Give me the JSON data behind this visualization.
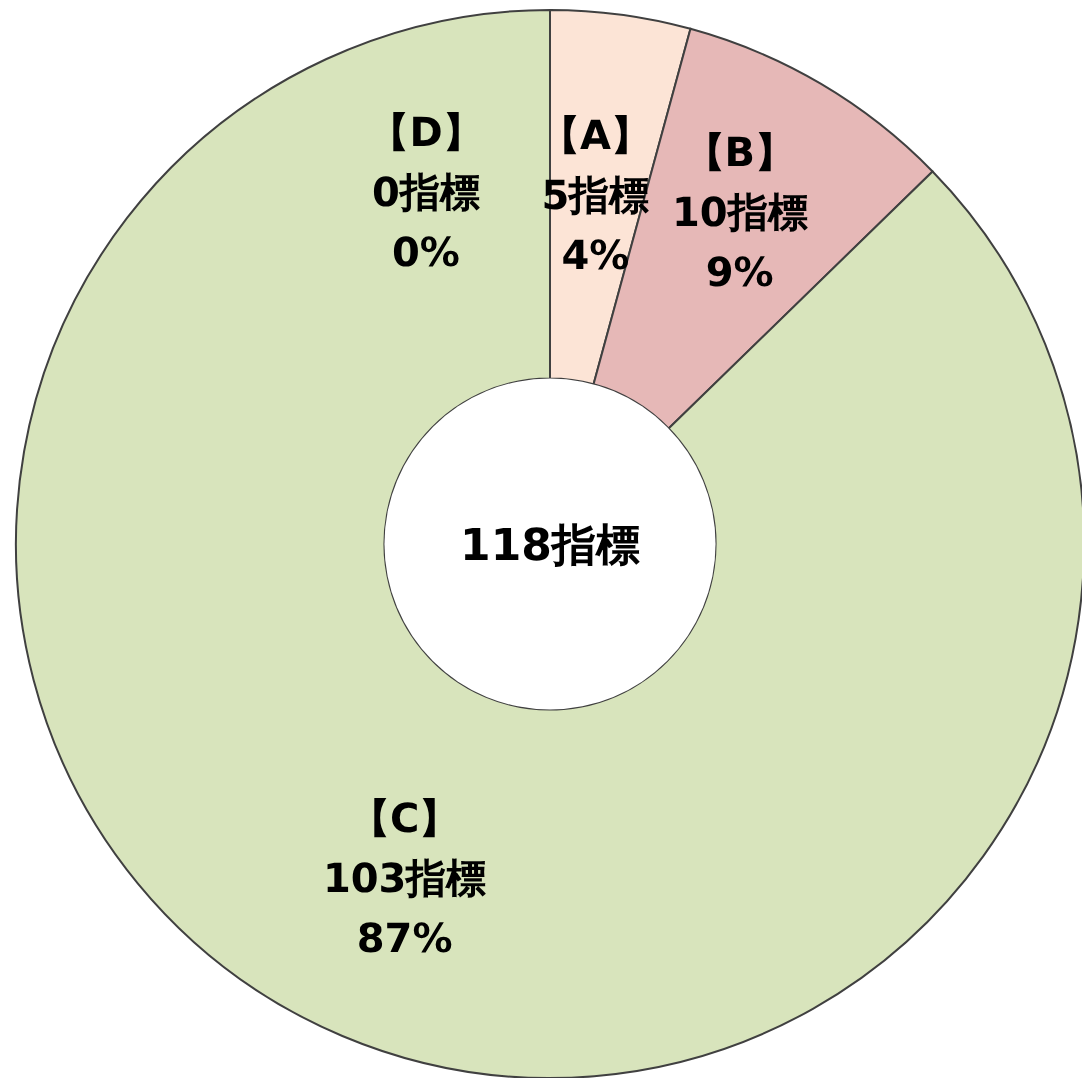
{
  "chart_data": {
    "type": "donut",
    "categories": [
      "【A】",
      "【B】",
      "【C】",
      "【D】"
    ],
    "values": [
      5,
      10,
      103,
      0
    ],
    "colors": [
      "#fce4d6",
      "#e6b8b7",
      "#d8e4bc",
      null
    ],
    "value_labels": [
      "5指標\n4%",
      "10指標\n9%",
      "103指標\n87%",
      "0指標\n0%"
    ],
    "annotations": [
      "118指標"
    ]
  }
}
